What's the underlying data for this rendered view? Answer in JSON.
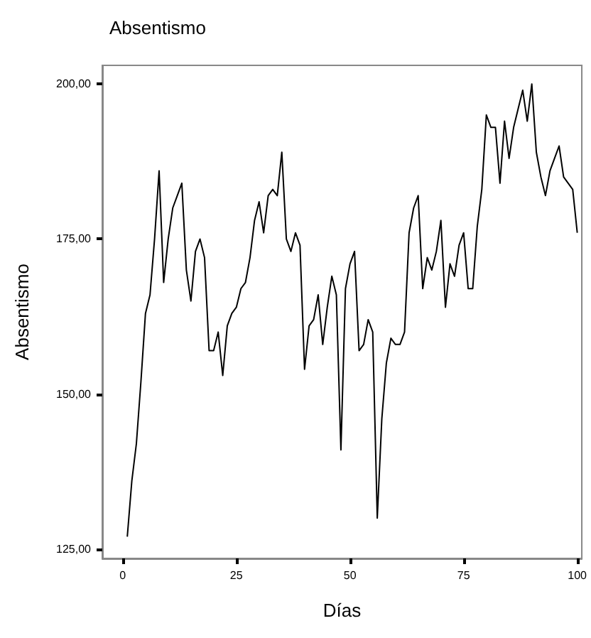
{
  "chart_data": {
    "type": "line",
    "title": "Absentismo",
    "xlabel": "Días",
    "ylabel": "Absentismo",
    "x": [
      1,
      2,
      3,
      4,
      5,
      6,
      7,
      8,
      9,
      10,
      11,
      12,
      13,
      14,
      15,
      16,
      17,
      18,
      19,
      20,
      21,
      22,
      23,
      24,
      25,
      26,
      27,
      28,
      29,
      30,
      31,
      32,
      33,
      34,
      35,
      36,
      37,
      38,
      39,
      40,
      41,
      42,
      43,
      44,
      45,
      46,
      47,
      48,
      49,
      50,
      51,
      52,
      53,
      54,
      55,
      56,
      57,
      58,
      59,
      60,
      61,
      62,
      63,
      64,
      65,
      66,
      67,
      68,
      69,
      70,
      71,
      72,
      73,
      74,
      75,
      76,
      77,
      78,
      79,
      80,
      81,
      82,
      83,
      84,
      85,
      86,
      87,
      88,
      89,
      90,
      91,
      92,
      93,
      94,
      95,
      96,
      97,
      98,
      99,
      100
    ],
    "series": [
      {
        "color": "#000000",
        "values": [
          127,
          136,
          142,
          152,
          163,
          166,
          175,
          186,
          168,
          175,
          180,
          182,
          184,
          170,
          165,
          173,
          175,
          172,
          157,
          157,
          160,
          153,
          161,
          163,
          164,
          167,
          168,
          172,
          178,
          181,
          176,
          182,
          183,
          182,
          189,
          175,
          173,
          176,
          174,
          154,
          161,
          162,
          166,
          158,
          164,
          169,
          166,
          141,
          167,
          171,
          173,
          157,
          158,
          162,
          160,
          130,
          146,
          155,
          159,
          158,
          158,
          160,
          176,
          180,
          182,
          167,
          172,
          170,
          173,
          178,
          164,
          171,
          169,
          174,
          176,
          167,
          167,
          177,
          183,
          195,
          193,
          193,
          184,
          194,
          188,
          193,
          196,
          199,
          194,
          200,
          189,
          185,
          182,
          186,
          188,
          190,
          185,
          184,
          183,
          176
        ]
      }
    ],
    "xlim": [
      -4.5,
      101
    ],
    "ylim": [
      123.5,
      203
    ],
    "xticks": [
      0,
      25,
      50,
      75,
      100
    ],
    "yticks": [
      {
        "value": 125,
        "label": "125,00"
      },
      {
        "value": 150,
        "label": "150,00"
      },
      {
        "value": 175,
        "label": "175,00"
      },
      {
        "value": 200,
        "label": "200,00"
      }
    ],
    "grid": false,
    "marker": "none",
    "line_style": "solid"
  }
}
